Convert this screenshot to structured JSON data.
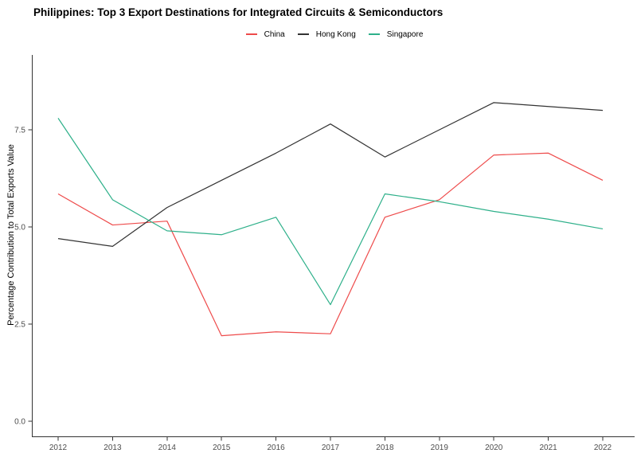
{
  "page": {
    "background": "#ffffff"
  },
  "chart_data": {
    "type": "line",
    "title": "Philippines: Top 3 Export Destinations for Integrated Circuits & Semiconductors",
    "xlabel": "",
    "ylabel": "Percentage Contribution to Total Exports Value",
    "x": [
      2012,
      2013,
      2014,
      2015,
      2016,
      2017,
      2018,
      2019,
      2020,
      2021,
      2022
    ],
    "x_tick_labels": [
      "2012",
      "2013",
      "2014",
      "2015",
      "2016",
      "2017",
      "2018",
      "2019",
      "2020",
      "2021",
      "2022"
    ],
    "y_ticks": [
      {
        "value": 0.0,
        "label": "0.0"
      },
      {
        "value": 2.5,
        "label": "2.5"
      },
      {
        "value": 5.0,
        "label": "5.0"
      },
      {
        "value": 7.5,
        "label": "7.5"
      }
    ],
    "ylim": [
      -0.4,
      9.4
    ],
    "grid": false,
    "legend_position": "top-center",
    "axis_color": "#333333",
    "tick_text_color": "#4d4d4d",
    "series": [
      {
        "name": "China",
        "color": "#ee4b4b",
        "values": [
          5.85,
          5.05,
          5.15,
          2.2,
          2.3,
          2.25,
          5.25,
          5.7,
          6.85,
          6.9,
          6.2
        ]
      },
      {
        "name": "Hong Kong",
        "color": "#333333",
        "values": [
          4.7,
          4.5,
          5.5,
          6.2,
          6.9,
          7.65,
          6.8,
          7.5,
          8.2,
          8.1,
          8.0
        ]
      },
      {
        "name": "Singapore",
        "color": "#2eb08a",
        "values": [
          7.8,
          5.7,
          4.9,
          4.8,
          5.25,
          3.0,
          5.85,
          5.65,
          5.4,
          5.2,
          4.95
        ]
      }
    ]
  }
}
